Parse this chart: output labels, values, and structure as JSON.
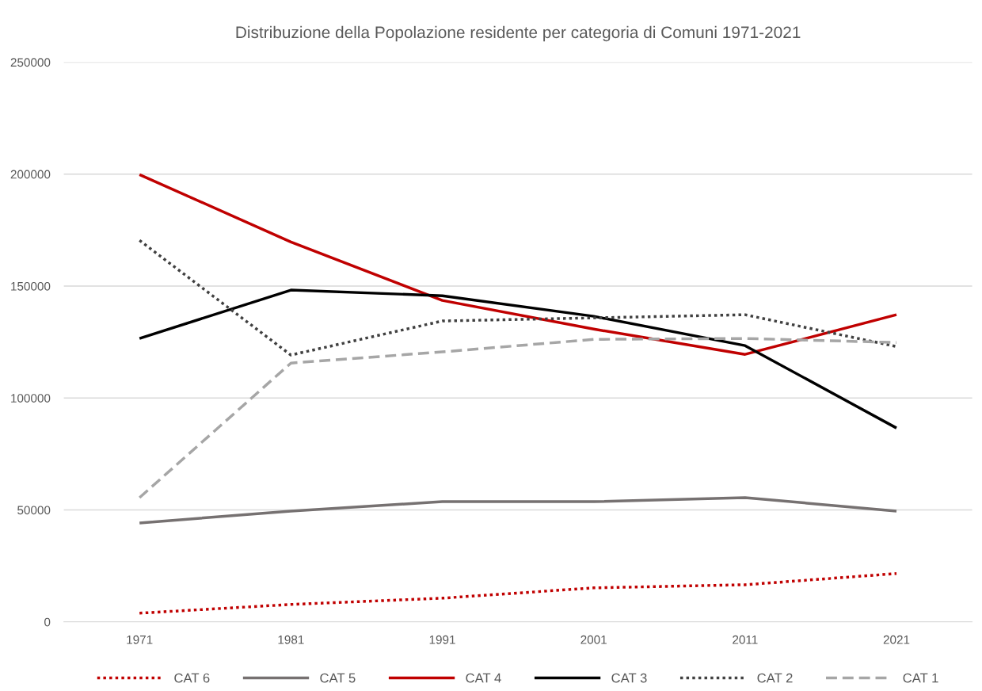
{
  "chart_data": {
    "type": "line",
    "title": "Distribuzione della Popolazione residente per categoria di Comuni 1971-2021",
    "categories": [
      "1971",
      "1981",
      "1991",
      "2001",
      "2011",
      "2021"
    ],
    "series": [
      {
        "name": "CAT 6",
        "color": "#c00000",
        "line_style": "dotted",
        "values": [
          3900,
          7800,
          10600,
          15200,
          16600,
          21600
        ]
      },
      {
        "name": "CAT 5",
        "color": "#767171",
        "line_style": "solid",
        "values": [
          44200,
          49500,
          53700,
          53700,
          55500,
          49500
        ]
      },
      {
        "name": "CAT 4",
        "color": "#c00000",
        "line_style": "solid",
        "values": [
          199800,
          169700,
          143600,
          130800,
          119500,
          137200
        ]
      },
      {
        "name": "CAT 3",
        "color": "#000000",
        "line_style": "solid",
        "values": [
          126600,
          148200,
          145700,
          136500,
          123400,
          86600
        ]
      },
      {
        "name": "CAT 2",
        "color": "#404040",
        "line_style": "dotted",
        "values": [
          170400,
          119200,
          134400,
          135800,
          137200,
          123000
        ]
      },
      {
        "name": "CAT 1",
        "color": "#a6a6a6",
        "line_style": "dashed",
        "values": [
          55500,
          115600,
          120600,
          126200,
          126600,
          124800
        ]
      }
    ],
    "ylim": [
      0,
      250000
    ],
    "yticks": [
      0,
      50000,
      100000,
      150000,
      200000,
      250000
    ],
    "grid": "y",
    "legend": "bottom",
    "marker": "none"
  }
}
